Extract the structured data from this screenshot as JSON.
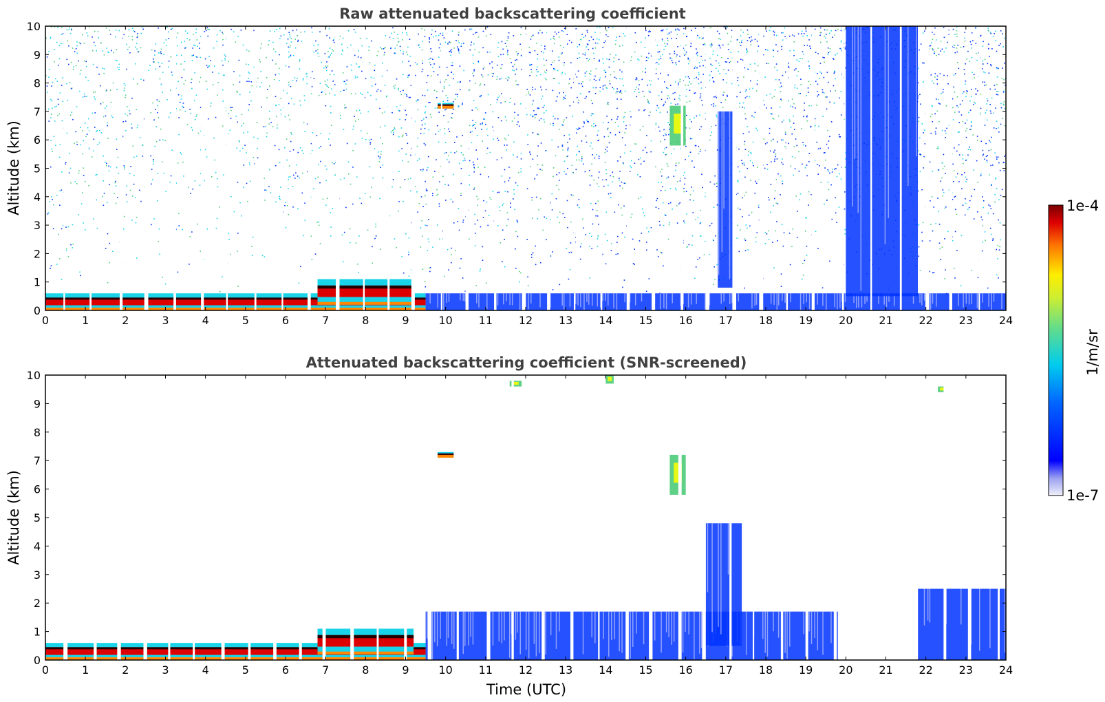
{
  "colors": {
    "scale_low": "#e8e8f8",
    "blue": "#0033ff",
    "cyan": "#19d3e8",
    "green": "#4ccc7a",
    "yellow": "#ffff00",
    "orange": "#ff8800",
    "red": "#dd0000",
    "darkred": "#7a0000",
    "black": "#000000"
  },
  "colorbar": {
    "min_label": "1e-7",
    "max_label": "1e-4",
    "unit_label": "1/m/sr",
    "scale": "log"
  },
  "chart_data": [
    {
      "type": "heatmap",
      "title": "Raw attenuated backscattering coefficient",
      "ylabel": "Altitude (km)",
      "xlabel": "",
      "xlim": [
        0,
        24
      ],
      "ylim": [
        0,
        10
      ],
      "x_ticks": [
        "0",
        "1",
        "2",
        "3",
        "4",
        "5",
        "6",
        "7",
        "8",
        "9",
        "10",
        "11",
        "12",
        "13",
        "14",
        "15",
        "16",
        "17",
        "18",
        "19",
        "20",
        "21",
        "22",
        "23",
        "24"
      ],
      "y_ticks": [
        "0",
        "1",
        "2",
        "3",
        "4",
        "5",
        "6",
        "7",
        "8",
        "9",
        "10"
      ],
      "color_scale": "log",
      "value_range": [
        1e-07,
        0.0001
      ],
      "grid": false,
      "features": [
        {
          "x": [
            0,
            9.5
          ],
          "y": [
            0,
            0.6
          ],
          "level": "high"
        },
        {
          "x": [
            6.8,
            9.2
          ],
          "y": [
            0.2,
            1.1
          ],
          "level": "high"
        },
        {
          "x": [
            9.5,
            24
          ],
          "y": [
            0,
            0.6
          ],
          "level": "low"
        },
        {
          "x": [
            9.8,
            10.2
          ],
          "y": [
            7.1,
            7.3
          ],
          "level": "high"
        },
        {
          "x": [
            15.6,
            16.0
          ],
          "y": [
            5.8,
            7.2
          ],
          "level": "mid"
        },
        {
          "x": [
            16.8,
            17.2
          ],
          "y": [
            0.8,
            7.0
          ],
          "level": "low"
        },
        {
          "x": [
            20.0,
            21.8
          ],
          "y": [
            0.5,
            10.0
          ],
          "level": "low"
        },
        {
          "x": [
            0,
            24
          ],
          "y": [
            0.6,
            10.0
          ],
          "level": "noise"
        }
      ]
    },
    {
      "type": "heatmap",
      "title": "Attenuated backscattering coefficient (SNR-screened)",
      "ylabel": "Altitude (km)",
      "xlabel": "Time (UTC)",
      "xlim": [
        0,
        24
      ],
      "ylim": [
        0,
        10
      ],
      "x_ticks": [
        "0",
        "1",
        "2",
        "3",
        "4",
        "5",
        "6",
        "7",
        "8",
        "9",
        "10",
        "11",
        "12",
        "13",
        "14",
        "15",
        "16",
        "17",
        "18",
        "19",
        "20",
        "21",
        "22",
        "23",
        "24"
      ],
      "y_ticks": [
        "0",
        "1",
        "2",
        "3",
        "4",
        "5",
        "6",
        "7",
        "8",
        "9",
        "10"
      ],
      "color_scale": "log",
      "value_range": [
        1e-07,
        0.0001
      ],
      "grid": false,
      "features": [
        {
          "x": [
            0,
            9.5
          ],
          "y": [
            0,
            0.6
          ],
          "level": "high"
        },
        {
          "x": [
            6.8,
            9.2
          ],
          "y": [
            0.2,
            1.1
          ],
          "level": "high"
        },
        {
          "x": [
            9.5,
            19.8
          ],
          "y": [
            0,
            1.7
          ],
          "level": "low"
        },
        {
          "x": [
            16.5,
            17.4
          ],
          "y": [
            0.5,
            4.8
          ],
          "level": "low"
        },
        {
          "x": [
            21.8,
            24
          ],
          "y": [
            0,
            2.5
          ],
          "level": "low"
        },
        {
          "x": [
            9.8,
            10.2
          ],
          "y": [
            7.1,
            7.3
          ],
          "level": "high"
        },
        {
          "x": [
            15.6,
            16.0
          ],
          "y": [
            5.8,
            7.2
          ],
          "level": "mid"
        },
        {
          "x": [
            11.6,
            11.9
          ],
          "y": [
            9.6,
            9.8
          ],
          "level": "mid"
        },
        {
          "x": [
            14.0,
            14.2
          ],
          "y": [
            9.7,
            10.0
          ],
          "level": "mid"
        },
        {
          "x": [
            22.3,
            22.5
          ],
          "y": [
            9.4,
            9.6
          ],
          "level": "mid"
        }
      ]
    }
  ]
}
